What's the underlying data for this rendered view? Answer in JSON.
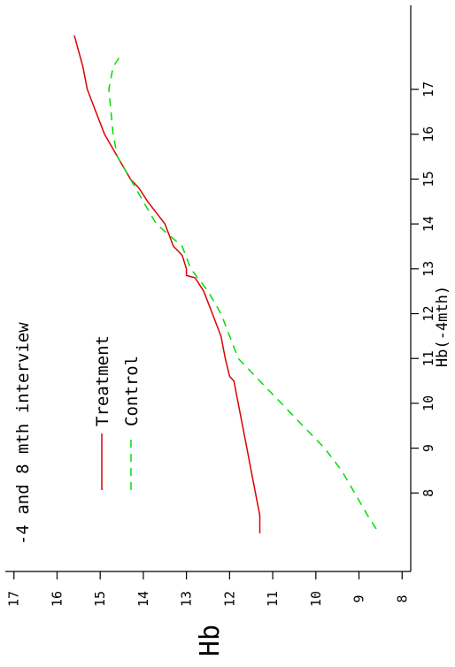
{
  "chart_data": {
    "type": "line",
    "title": "-4 and 8 mth interview",
    "xlabel": "Hb(-4mth)",
    "ylabel": "Hb",
    "xlim": [
      7,
      18.5
    ],
    "ylim": [
      7.8,
      17.2
    ],
    "xticks": [
      8,
      9,
      10,
      11,
      12,
      13,
      14,
      15,
      16,
      17
    ],
    "xtick_labels": [
      "8",
      "9",
      "10",
      "11",
      "12",
      "13",
      "14",
      "15",
      "16",
      "17"
    ],
    "yticks": [
      8,
      9,
      10,
      11,
      12,
      13,
      14,
      15,
      16,
      17
    ],
    "ytick_labels": [
      "8",
      "9",
      "10",
      "11",
      "12",
      "13",
      "14",
      "15",
      "16",
      "17"
    ],
    "orientation": "rotated-90",
    "grid": false,
    "legend": "top-left",
    "series": [
      {
        "name": "Treatment",
        "color": "#dd0000",
        "dash": "solid",
        "x": [
          7.1,
          7.5,
          8.0,
          8.5,
          9.0,
          9.5,
          10.0,
          10.5,
          10.6,
          11.0,
          11.5,
          12.0,
          12.5,
          12.8,
          12.85,
          13.0,
          13.3,
          13.5,
          14.0,
          14.5,
          14.8,
          15.0,
          15.5,
          16.0,
          16.5,
          17.0,
          17.5,
          18.2
        ],
        "y": [
          11.3,
          11.3,
          11.4,
          11.5,
          11.6,
          11.7,
          11.8,
          11.9,
          12.0,
          12.1,
          12.2,
          12.4,
          12.6,
          12.8,
          13.0,
          13.0,
          13.1,
          13.3,
          13.5,
          13.9,
          14.1,
          14.3,
          14.6,
          14.9,
          15.1,
          15.3,
          15.4,
          15.6
        ]
      },
      {
        "name": "Control",
        "color": "#00dd00",
        "dash": "dashed",
        "x": [
          7.2,
          7.5,
          8.0,
          8.5,
          9.0,
          9.5,
          10.0,
          10.5,
          11.0,
          11.5,
          12.0,
          12.5,
          13.0,
          13.5,
          14.0,
          14.5,
          15.0,
          15.5,
          16.0,
          16.5,
          17.0,
          17.5,
          17.8
        ],
        "y": [
          8.6,
          8.8,
          9.1,
          9.4,
          9.8,
          10.3,
          10.8,
          11.3,
          11.8,
          12.0,
          12.2,
          12.5,
          12.9,
          13.1,
          13.7,
          14.0,
          14.3,
          14.6,
          14.7,
          14.75,
          14.8,
          14.7,
          14.5
        ]
      }
    ]
  }
}
